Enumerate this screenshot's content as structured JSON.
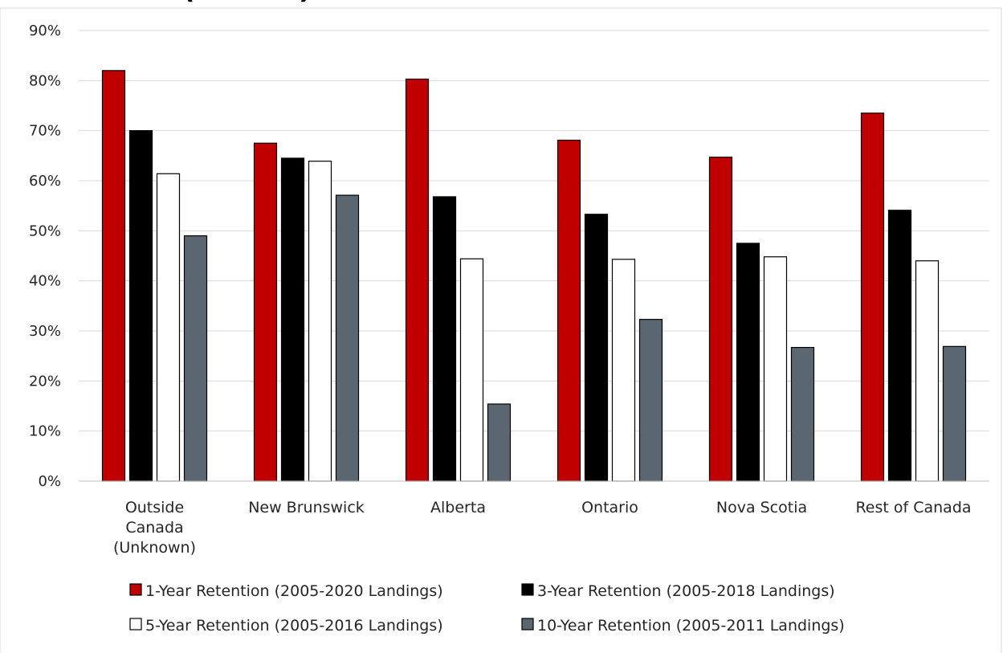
{
  "chart_data": {
    "type": "bar",
    "title": "",
    "title_fragment": "(",
    "title_fragment_end": ")",
    "xlabel": "",
    "ylabel": "",
    "ylim": [
      0,
      0.9
    ],
    "ytick_values": [
      0,
      0.1,
      0.2,
      0.3,
      0.4,
      0.5,
      0.6,
      0.7,
      0.8,
      0.9
    ],
    "ytick_labels": [
      "0%",
      "10%",
      "20%",
      "30%",
      "40%",
      "50%",
      "60%",
      "70%",
      "80%",
      "90%"
    ],
    "grid": true,
    "legend_position": "bottom",
    "categories": [
      [
        "Outside",
        "Canada",
        "(Unknown)"
      ],
      [
        "New Brunswick"
      ],
      [
        "Alberta"
      ],
      [
        "Ontario"
      ],
      [
        "Nova Scotia"
      ],
      [
        "Rest of Canada"
      ]
    ],
    "series": [
      {
        "name": "1-Year Retention (2005-2020 Landings)",
        "color": "#c00000",
        "values": [
          0.82,
          0.675,
          0.803,
          0.681,
          0.647,
          0.735
        ]
      },
      {
        "name": "3-Year Retention (2005-2018 Landings)",
        "color": "#000000",
        "values": [
          0.7,
          0.645,
          0.568,
          0.533,
          0.475,
          0.541
        ]
      },
      {
        "name": "5-Year Retention (2005-2016 Landings)",
        "color": "#ffffff",
        "values": [
          0.614,
          0.639,
          0.444,
          0.443,
          0.448,
          0.44
        ]
      },
      {
        "name": "10-Year Retention (2005-2011 Landings)",
        "color": "#5a6670",
        "values": [
          0.49,
          0.571,
          0.154,
          0.323,
          0.267,
          0.269
        ]
      }
    ]
  }
}
